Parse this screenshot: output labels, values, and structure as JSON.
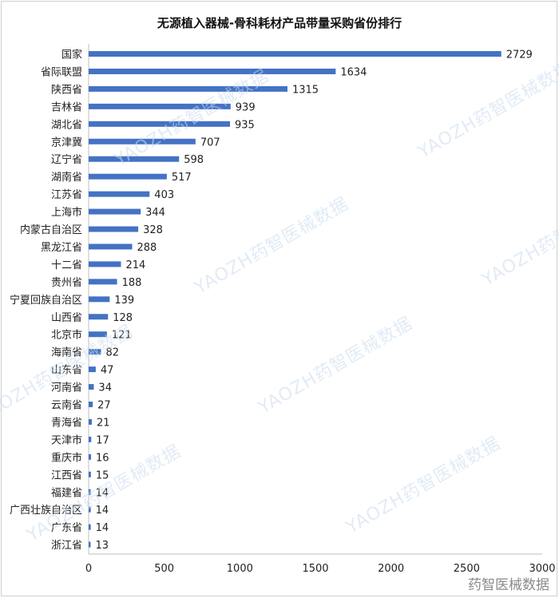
{
  "watermark_text": "YAOZH药智医械数据",
  "footer_mark": "药智医械数据",
  "colors": {
    "bar": "#4472C4",
    "text": "#222222",
    "axis": "#bfbfbf"
  },
  "chart_data": {
    "type": "bar",
    "orientation": "horizontal",
    "title": "无源植入器械-骨科耗材产品带量采购省份排行",
    "xlabel": "",
    "ylabel": "",
    "xlim": [
      0,
      3000
    ],
    "xticks": [
      0,
      500,
      1000,
      1500,
      2000,
      2500,
      3000
    ],
    "grid": false,
    "categories": [
      "国家",
      "省际联盟",
      "陕西省",
      "吉林省",
      "湖北省",
      "京津冀",
      "辽宁省",
      "湖南省",
      "江苏省",
      "上海市",
      "内蒙古自治区",
      "黑龙江省",
      "十二省",
      "贵州省",
      "宁夏回族自治区",
      "山西省",
      "北京市",
      "海南省",
      "山东省",
      "河南省",
      "云南省",
      "青海省",
      "天津市",
      "重庆市",
      "江西省",
      "福建省",
      "广西壮族自治区",
      "广东省",
      "浙江省"
    ],
    "values": [
      2729,
      1634,
      1315,
      939,
      935,
      707,
      598,
      517,
      403,
      344,
      328,
      288,
      214,
      188,
      139,
      128,
      121,
      82,
      47,
      34,
      27,
      21,
      17,
      16,
      15,
      14,
      14,
      14,
      13
    ]
  }
}
